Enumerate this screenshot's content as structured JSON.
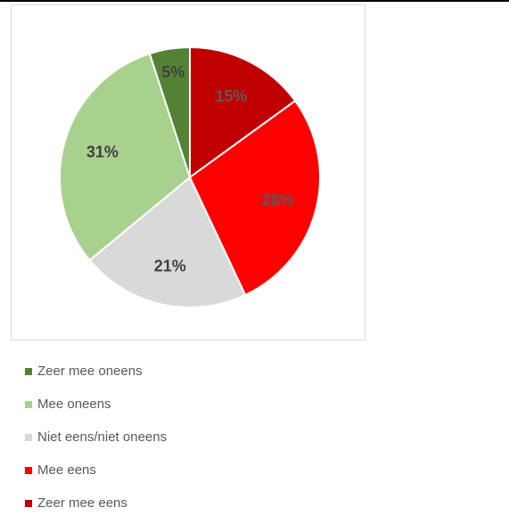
{
  "chart_data": {
    "type": "pie",
    "title": "",
    "legend_position": "bottom-left",
    "slices": [
      {
        "label": "Zeer mee eens",
        "value": 15,
        "display": "15%",
        "color": "#c00000",
        "label_color": "#595959"
      },
      {
        "label": "Mee eens",
        "value": 28,
        "display": "28%",
        "color": "#ff0000",
        "label_color": "#595959"
      },
      {
        "label": "Niet eens/niet oneens",
        "value": 21,
        "display": "21%",
        "color": "#d9d9d9",
        "label_color": "#404040"
      },
      {
        "label": "Mee oneens",
        "value": 31,
        "display": "31%",
        "color": "#a9d18e",
        "label_color": "#404040"
      },
      {
        "label": "Zeer mee oneens",
        "value": 5,
        "display": "5%",
        "color": "#548235",
        "label_color": "#404040"
      }
    ],
    "legend_order": [
      "Zeer mee oneens",
      "Mee oneens",
      "Niet eens/niet oneens",
      "Mee eens",
      "Zeer mee eens"
    ]
  }
}
